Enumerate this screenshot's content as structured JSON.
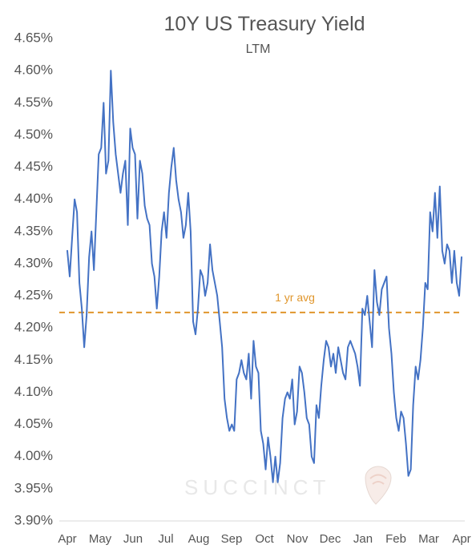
{
  "title": "10Y US Treasury Yield",
  "subtitle": "LTM",
  "watermark": {
    "text": "SUCCINCT"
  },
  "colors": {
    "line": "#4472c4",
    "average": "#e0962c",
    "text": "#555555",
    "axis": "#d9d9d9"
  },
  "chart_data": {
    "type": "line",
    "title": "10Y US Treasury Yield",
    "subtitle": "LTM",
    "xlabel": "",
    "ylabel": "",
    "ylim": [
      3.9,
      4.65
    ],
    "y_ticks": [
      "4.65%",
      "4.60%",
      "4.55%",
      "4.50%",
      "4.45%",
      "4.40%",
      "4.35%",
      "4.30%",
      "4.25%",
      "4.20%",
      "4.15%",
      "4.10%",
      "4.05%",
      "4.00%",
      "3.95%",
      "3.90%"
    ],
    "x_ticks": [
      "Apr",
      "May",
      "Jun",
      "Jul",
      "Aug",
      "Sep",
      "Oct",
      "Nov",
      "Dec",
      "Jan",
      "Feb",
      "Mar",
      "Apr"
    ],
    "grid": false,
    "legend": "none",
    "series": [
      {
        "values": [
          4.32,
          4.28,
          4.34,
          4.4,
          4.38,
          4.27,
          4.23,
          4.17,
          4.22,
          4.31,
          4.35,
          4.29,
          4.38,
          4.47,
          4.48,
          4.55,
          4.44,
          4.46,
          4.6,
          4.52,
          4.47,
          4.44,
          4.41,
          4.44,
          4.46,
          4.36,
          4.51,
          4.48,
          4.47,
          4.37,
          4.46,
          4.44,
          4.39,
          4.37,
          4.36,
          4.3,
          4.28,
          4.23,
          4.28,
          4.35,
          4.38,
          4.34,
          4.41,
          4.45,
          4.48,
          4.43,
          4.4,
          4.38,
          4.34,
          4.36,
          4.41,
          4.35,
          4.21,
          4.19,
          4.23,
          4.29,
          4.28,
          4.25,
          4.27,
          4.33,
          4.29,
          4.27,
          4.25,
          4.21,
          4.17,
          4.09,
          4.06,
          4.04,
          4.05,
          4.04,
          4.12,
          4.13,
          4.15,
          4.13,
          4.12,
          4.16,
          4.09,
          4.18,
          4.14,
          4.13,
          4.04,
          4.02,
          3.98,
          4.03,
          4.0,
          3.96,
          4.0,
          3.96,
          3.99,
          4.06,
          4.09,
          4.1,
          4.09,
          4.12,
          4.05,
          4.07,
          4.14,
          4.13,
          4.1,
          4.06,
          4.05,
          4.0,
          3.99,
          4.08,
          4.06,
          4.11,
          4.15,
          4.18,
          4.17,
          4.14,
          4.16,
          4.13,
          4.17,
          4.15,
          4.13,
          4.12,
          4.17,
          4.18,
          4.17,
          4.16,
          4.14,
          4.11,
          4.23,
          4.22,
          4.25,
          4.21,
          4.17,
          4.29,
          4.24,
          4.22,
          4.26,
          4.27,
          4.28,
          4.2,
          4.16,
          4.1,
          4.06,
          4.04,
          4.07,
          4.06,
          4.02,
          3.97,
          3.98,
          4.08,
          4.14,
          4.12,
          4.15,
          4.2,
          4.27,
          4.26,
          4.38,
          4.35,
          4.41,
          4.34,
          4.42,
          4.32,
          4.3,
          4.33,
          4.32,
          4.27,
          4.32,
          4.27,
          4.25,
          4.31
        ]
      },
      {
        "name": "1 yr avg",
        "values": [
          4.224
        ]
      }
    ]
  }
}
